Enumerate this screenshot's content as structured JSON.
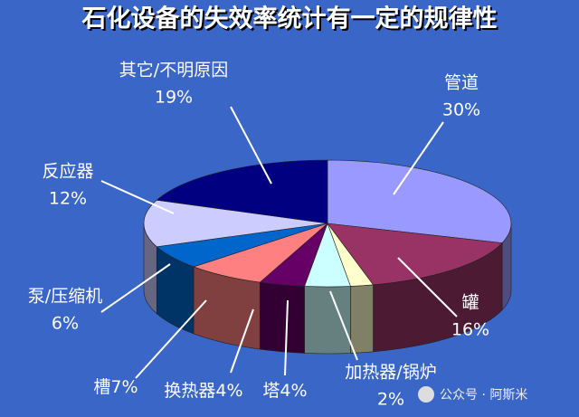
{
  "chart_data": {
    "type": "pie3d",
    "title": "石化设备的失效率统计有一定的规律性",
    "categories": [
      "管道",
      "罐",
      "加热器/锅炉",
      "塔",
      "换热器",
      "槽",
      "泵/压缩机",
      "反应器",
      "其它/不明原因"
    ],
    "values": [
      30,
      16,
      2,
      4,
      4,
      7,
      6,
      12,
      19
    ],
    "value_labels": [
      "30%",
      "16%",
      "2%",
      "4%",
      "4%",
      "7%",
      "6%",
      "12%",
      "19%"
    ],
    "colors": [
      "#9999ff",
      "#993366",
      "#ffffcc",
      "#ccffff",
      "#660066",
      "#ff8080",
      "#0066cc",
      "#ccccff",
      "#000080"
    ],
    "watermark": "公众号 · 阿斯米"
  }
}
